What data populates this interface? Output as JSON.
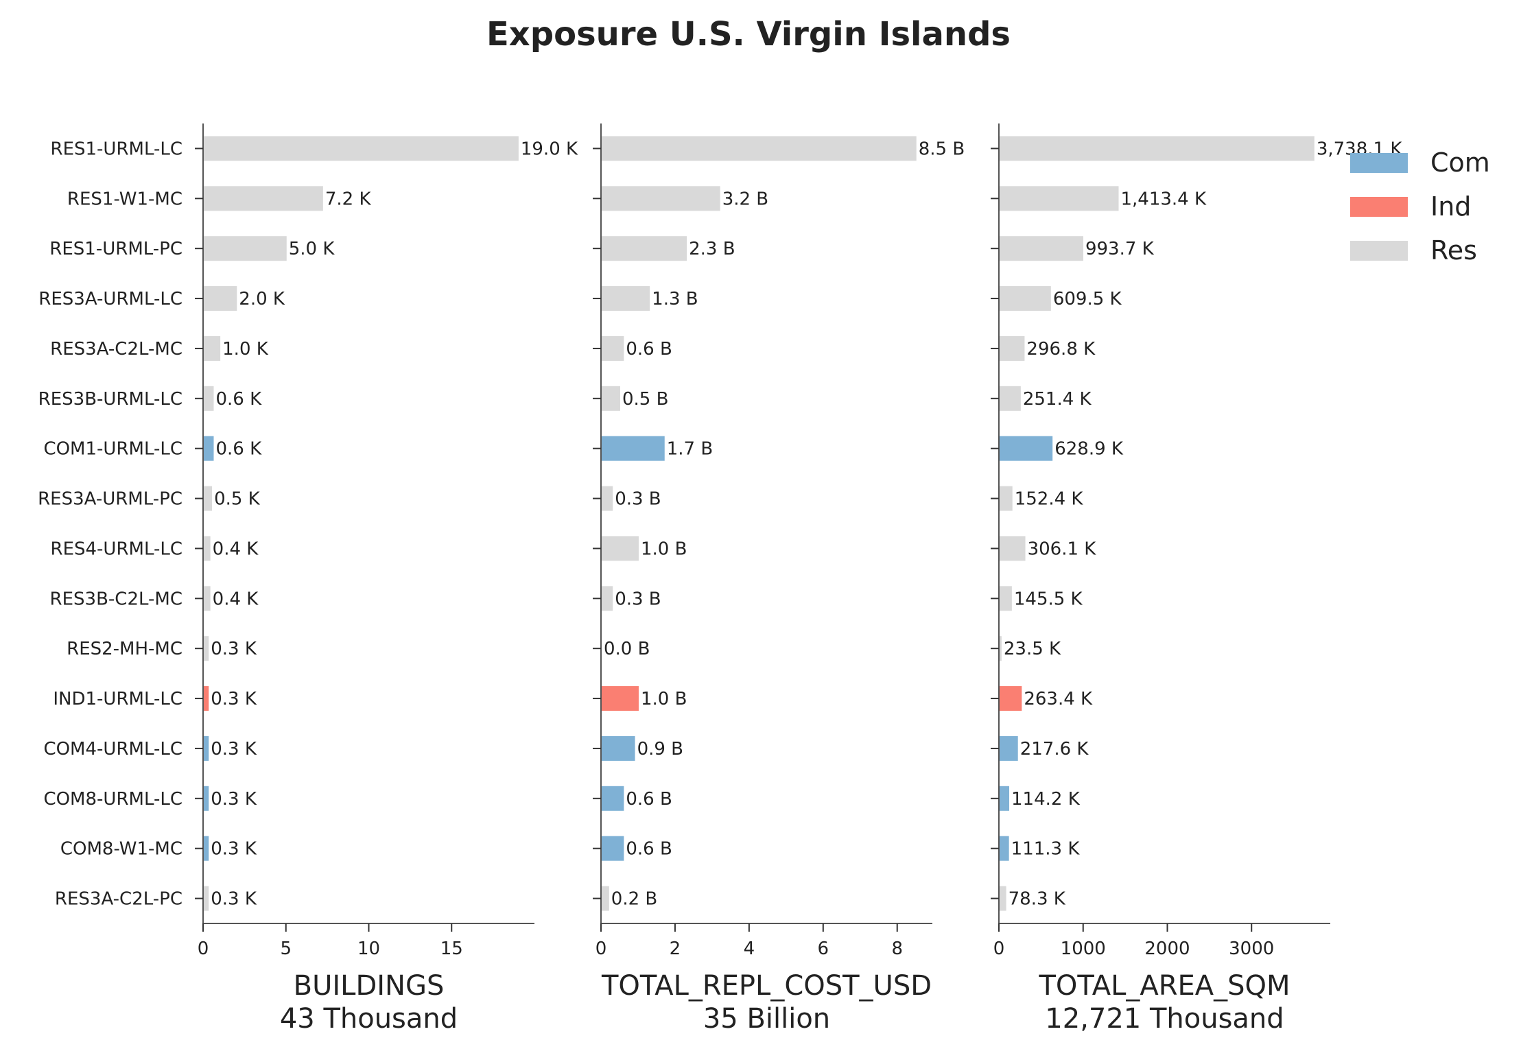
{
  "title": "Exposure U.S. Virgin Islands",
  "colors": {
    "Com": "#7fb1d5",
    "Ind": "#fa7f72",
    "Res": "#d9d9d9",
    "axis": "#555555",
    "text": "#222222"
  },
  "legend": {
    "placement": "upper-right",
    "entries": [
      "Com",
      "Ind",
      "Res"
    ]
  },
  "chart_data": {
    "type": "bar",
    "orientation": "horizontal",
    "grid": false,
    "categories": [
      "RES1-URML-LC",
      "RES1-W1-MC",
      "RES1-URML-PC",
      "RES3A-URML-LC",
      "RES3A-C2L-MC",
      "RES3B-URML-LC",
      "COM1-URML-LC",
      "RES3A-URML-PC",
      "RES4-URML-LC",
      "RES3B-C2L-MC",
      "RES2-MH-MC",
      "IND1-URML-LC",
      "COM4-URML-LC",
      "COM8-URML-LC",
      "COM8-W1-MC",
      "RES3A-C2L-PC"
    ],
    "occupancy": [
      "Res",
      "Res",
      "Res",
      "Res",
      "Res",
      "Res",
      "Com",
      "Res",
      "Res",
      "Res",
      "Res",
      "Ind",
      "Com",
      "Com",
      "Com",
      "Res"
    ],
    "panels": [
      {
        "xlabel": "BUILDINGS",
        "subtitle": "43 Thousand",
        "xlim": [
          0,
          20
        ],
        "xticks": [
          0,
          5,
          10,
          15
        ],
        "values": [
          19.0,
          7.2,
          5.0,
          2.0,
          1.0,
          0.6,
          0.6,
          0.5,
          0.4,
          0.4,
          0.3,
          0.3,
          0.3,
          0.3,
          0.3,
          0.3
        ],
        "labels": [
          "19.0 K",
          "7.2 K",
          "5.0 K",
          "2.0 K",
          "1.0 K",
          "0.6 K",
          "0.6 K",
          "0.5 K",
          "0.4 K",
          "0.4 K",
          "0.3 K",
          "0.3 K",
          "0.3 K",
          "0.3 K",
          "0.3 K",
          "0.3 K"
        ]
      },
      {
        "xlabel": "TOTAL_REPL_COST_USD",
        "subtitle": "35 Billion",
        "xlim": [
          0,
          8.95
        ],
        "xticks": [
          0,
          2,
          4,
          6,
          8
        ],
        "values": [
          8.5,
          3.2,
          2.3,
          1.3,
          0.6,
          0.5,
          1.7,
          0.3,
          1.0,
          0.3,
          0.0,
          1.0,
          0.9,
          0.6,
          0.6,
          0.2
        ],
        "labels": [
          "8.5 B",
          "3.2 B",
          "2.3 B",
          "1.3 B",
          "0.6 B",
          "0.5 B",
          "1.7 B",
          "0.3 B",
          "1.0 B",
          "0.3 B",
          "0.0 B",
          "1.0 B",
          "0.9 B",
          "0.6 B",
          "0.6 B",
          "0.2 B"
        ]
      },
      {
        "xlabel": "TOTAL_AREA_SQM",
        "subtitle": "12,721 Thousand",
        "xlim": [
          0,
          3935
        ],
        "xticks": [
          0,
          1000,
          2000,
          3000
        ],
        "values": [
          3738.1,
          1413.4,
          993.7,
          609.5,
          296.8,
          251.4,
          628.9,
          152.4,
          306.1,
          145.5,
          23.5,
          263.4,
          217.6,
          114.2,
          111.3,
          78.3
        ],
        "labels": [
          "3,738.1 K",
          "1,413.4 K",
          "993.7 K",
          "609.5 K",
          "296.8 K",
          "251.4 K",
          "628.9 K",
          "152.4 K",
          "306.1 K",
          "145.5 K",
          "23.5 K",
          "263.4 K",
          "217.6 K",
          "114.2 K",
          "111.3 K",
          "78.3 K"
        ]
      }
    ]
  }
}
